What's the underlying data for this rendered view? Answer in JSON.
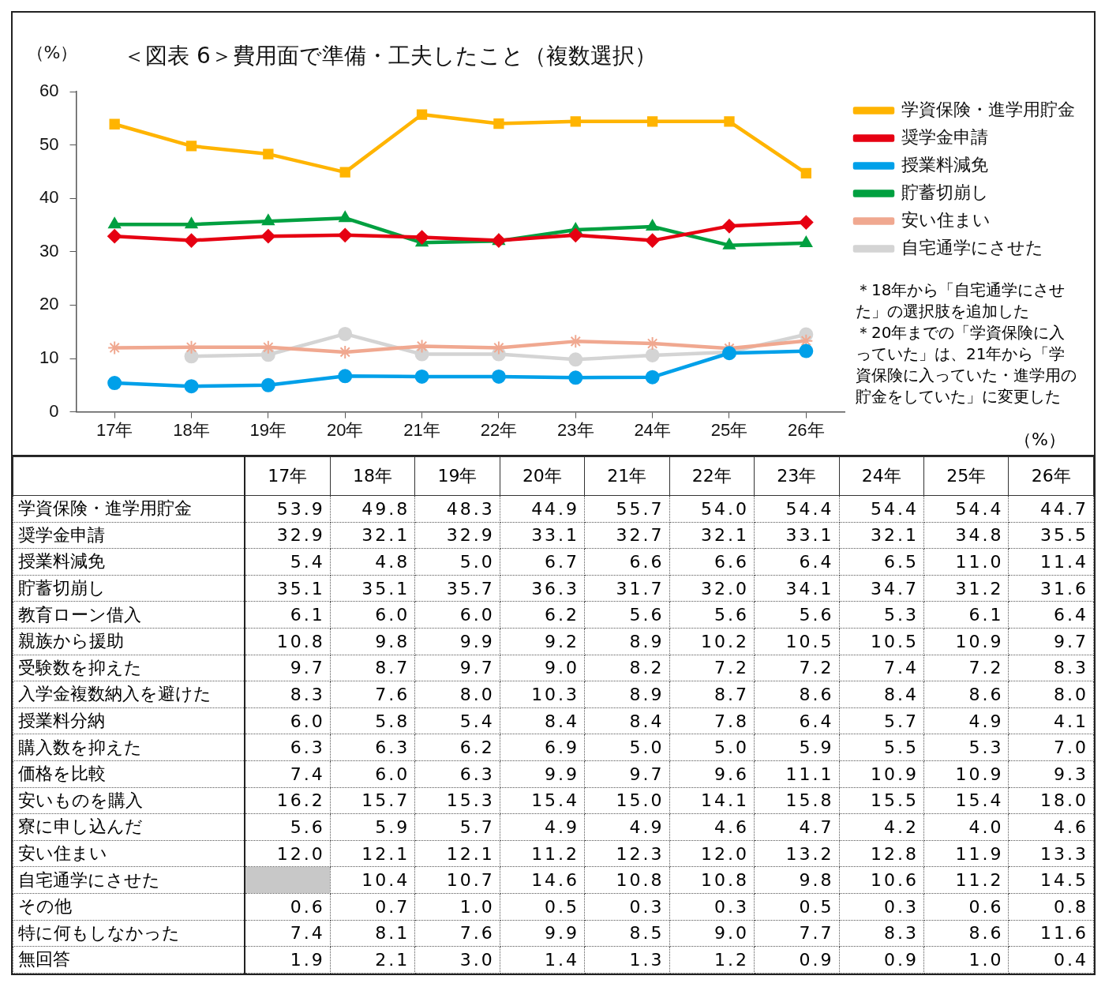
{
  "chart_data": [
    {
      "type": "line",
      "title": "＜図表 6＞費用面で準備・工夫したこと（複数選択）",
      "ylabel": "（%）",
      "categories": [
        "17年",
        "18年",
        "19年",
        "20年",
        "21年",
        "22年",
        "23年",
        "24年",
        "25年",
        "26年"
      ],
      "series": [
        {
          "name": "学資保険・進学用貯金",
          "color": "#ffb400",
          "marker": "square",
          "values": [
            53.9,
            49.8,
            48.3,
            44.9,
            55.7,
            54.0,
            54.4,
            54.4,
            54.4,
            44.7
          ]
        },
        {
          "name": "奨学金申請",
          "color": "#e60012",
          "marker": "diamond",
          "values": [
            32.9,
            32.1,
            32.9,
            33.1,
            32.7,
            32.1,
            33.1,
            32.1,
            34.8,
            35.5
          ]
        },
        {
          "name": "授業料減免",
          "color": "#00a0e9",
          "marker": "circle",
          "values": [
            5.4,
            4.8,
            5.0,
            6.7,
            6.6,
            6.6,
            6.4,
            6.5,
            11.0,
            11.4
          ]
        },
        {
          "name": "貯蓄切崩し",
          "color": "#00a040",
          "marker": "triangle",
          "values": [
            35.1,
            35.1,
            35.7,
            36.3,
            31.7,
            32.0,
            34.1,
            34.7,
            31.2,
            31.6
          ]
        },
        {
          "name": "安い住まい",
          "color": "#f0a890",
          "marker": "cross",
          "values": [
            12.0,
            12.1,
            12.1,
            11.2,
            12.3,
            12.0,
            13.2,
            12.8,
            11.9,
            13.3
          ]
        },
        {
          "name": "自宅通学にさせた",
          "color": "#d4d4d4",
          "marker": "circle",
          "values": [
            null,
            10.4,
            10.7,
            14.6,
            10.8,
            10.8,
            9.8,
            10.6,
            11.2,
            14.5
          ]
        }
      ],
      "ylim": [
        0,
        60
      ],
      "yticks": [
        0,
        10,
        20,
        30,
        40,
        50,
        60
      ],
      "legend": "top right",
      "annotations": [
        "＊18年から「自宅通学にさせた」の選択肢を追加した",
        "＊20年までの「学資保険に入っていた」は、21年から「学資保険に入っていた・進学用の貯金をしていた」に変更した",
        "（%）"
      ]
    },
    {
      "type": "heatmap",
      "data_labels": true,
      "categories": [
        "17年",
        "18年",
        "19年",
        "20年",
        "21年",
        "22年",
        "23年",
        "24年",
        "25年",
        "26年"
      ],
      "y_categories": [
        "学資保険・進学用貯金",
        "奨学金申請",
        "授業料減免",
        "貯蓄切崩し",
        "教育ローン借入",
        "親族から援助",
        "受験数を抑えた",
        "入学金複数納入を避けた",
        "授業料分納",
        "購入数を抑えた",
        "価格を比較",
        "安いものを購入",
        "寮に申し込んだ",
        "安い住まい",
        "自宅通学にさせた",
        "その他",
        "特に何もしなかった",
        "無回答"
      ],
      "cells": [
        [
          53.9,
          49.8,
          48.3,
          44.9,
          55.7,
          54.0,
          54.4,
          54.4,
          54.4,
          44.7
        ],
        [
          32.9,
          32.1,
          32.9,
          33.1,
          32.7,
          32.1,
          33.1,
          32.1,
          34.8,
          35.5
        ],
        [
          5.4,
          4.8,
          5.0,
          6.7,
          6.6,
          6.6,
          6.4,
          6.5,
          11.0,
          11.4
        ],
        [
          35.1,
          35.1,
          35.7,
          36.3,
          31.7,
          32.0,
          34.1,
          34.7,
          31.2,
          31.6
        ],
        [
          6.1,
          6.0,
          6.0,
          6.2,
          5.6,
          5.6,
          5.6,
          5.3,
          6.1,
          6.4
        ],
        [
          10.8,
          9.8,
          9.9,
          9.2,
          8.9,
          10.2,
          10.5,
          10.5,
          10.9,
          9.7
        ],
        [
          9.7,
          8.7,
          9.7,
          9.0,
          8.2,
          7.2,
          7.2,
          7.4,
          7.2,
          8.3
        ],
        [
          8.3,
          7.6,
          8.0,
          10.3,
          8.9,
          8.7,
          8.6,
          8.4,
          8.6,
          8.0
        ],
        [
          6.0,
          5.8,
          5.4,
          8.4,
          8.4,
          7.8,
          6.4,
          5.7,
          4.9,
          4.1
        ],
        [
          6.3,
          6.3,
          6.2,
          6.9,
          5.0,
          5.0,
          5.9,
          5.5,
          5.3,
          7.0
        ],
        [
          7.4,
          6.0,
          6.3,
          9.9,
          9.7,
          9.6,
          11.1,
          10.9,
          10.9,
          9.3
        ],
        [
          16.2,
          15.7,
          15.3,
          15.4,
          15.0,
          14.1,
          15.8,
          15.5,
          15.4,
          18.0
        ],
        [
          5.6,
          5.9,
          5.7,
          4.9,
          4.9,
          4.6,
          4.7,
          4.2,
          4.0,
          4.6
        ],
        [
          12.0,
          12.1,
          12.1,
          11.2,
          12.3,
          12.0,
          13.2,
          12.8,
          11.9,
          13.3
        ],
        [
          null,
          10.4,
          10.7,
          14.6,
          10.8,
          10.8,
          9.8,
          10.6,
          11.2,
          14.5
        ],
        [
          0.6,
          0.7,
          1.0,
          0.5,
          0.3,
          0.3,
          0.5,
          0.3,
          0.6,
          0.8
        ],
        [
          7.4,
          8.1,
          7.6,
          9.9,
          8.5,
          9.0,
          7.7,
          8.3,
          8.6,
          11.6
        ],
        [
          1.9,
          2.1,
          3.0,
          1.4,
          1.3,
          1.2,
          0.9,
          0.9,
          1.0,
          0.4
        ]
      ],
      "cell_labels": [
        [
          "53.9",
          "49.8",
          "48.3",
          "44.9",
          "55.7",
          "54.0",
          "54.4",
          "54.4",
          "54.4",
          "44.7"
        ],
        [
          "32.9",
          "32.1",
          "32.9",
          "33.1",
          "32.7",
          "32.1",
          "33.1",
          "32.1",
          "34.8",
          "35.5"
        ],
        [
          "5.4",
          "4.8",
          "5.0",
          "6.7",
          "6.6",
          "6.6",
          "6.4",
          "6.5",
          "11.0",
          "11.4"
        ],
        [
          "35.1",
          "35.1",
          "35.7",
          "36.3",
          "31.7",
          "32.0",
          "34.1",
          "34.7",
          "31.2",
          "31.6"
        ],
        [
          "6.1",
          "6.0",
          "6.0",
          "6.2",
          "5.6",
          "5.6",
          "5.6",
          "5.3",
          "6.1",
          "6.4"
        ],
        [
          "10.8",
          "9.8",
          "9.9",
          "9.2",
          "8.9",
          "10.2",
          "10.5",
          "10.5",
          "10.9",
          "9.7"
        ],
        [
          "9.7",
          "8.7",
          "9.7",
          "9.0",
          "8.2",
          "7.2",
          "7.2",
          "7.4",
          "7.2",
          "8.3"
        ],
        [
          "8.3",
          "7.6",
          "8.0",
          "10.3",
          "8.9",
          "8.7",
          "8.6",
          "8.4",
          "8.6",
          "8.0"
        ],
        [
          "6.0",
          "5.8",
          "5.4",
          "8.4",
          "8.4",
          "7.8",
          "6.4",
          "5.7",
          "4.9",
          "4.1"
        ],
        [
          "6.3",
          "6.3",
          "6.2",
          "6.9",
          "5.0",
          "5.0",
          "5.9",
          "5.5",
          "5.3",
          "7.0"
        ],
        [
          "7.4",
          "6.0",
          "6.3",
          "9.9",
          "9.7",
          "9.6",
          "11.1",
          "10.9",
          "10.9",
          "9.3"
        ],
        [
          "16.2",
          "15.7",
          "15.3",
          "15.4",
          "15.0",
          "14.1",
          "15.8",
          "15.5",
          "15.4",
          "18.0"
        ],
        [
          "5.6",
          "5.9",
          "5.7",
          "4.9",
          "4.9",
          "4.6",
          "4.7",
          "4.2",
          "4.0",
          "4.6"
        ],
        [
          "12.0",
          "12.1",
          "12.1",
          "11.2",
          "12.3",
          "12.0",
          "13.2",
          "12.8",
          "11.9",
          "13.3"
        ],
        [
          null,
          "10.4",
          "10.7",
          "14.6",
          "10.8",
          "10.8",
          "9.8",
          "10.6",
          "11.2",
          "14.5"
        ],
        [
          "0.6",
          "0.7",
          "1.0",
          "0.5",
          "0.3",
          "0.3",
          "0.5",
          "0.3",
          "0.6",
          "0.8"
        ],
        [
          "7.4",
          "8.1",
          "7.6",
          "9.9",
          "8.5",
          "9.0",
          "7.7",
          "8.3",
          "8.6",
          "11.6"
        ],
        [
          "1.9",
          "2.1",
          "3.0",
          "1.4",
          "1.3",
          "1.2",
          "0.9",
          "0.9",
          "1.0",
          "0.4"
        ]
      ]
    }
  ]
}
